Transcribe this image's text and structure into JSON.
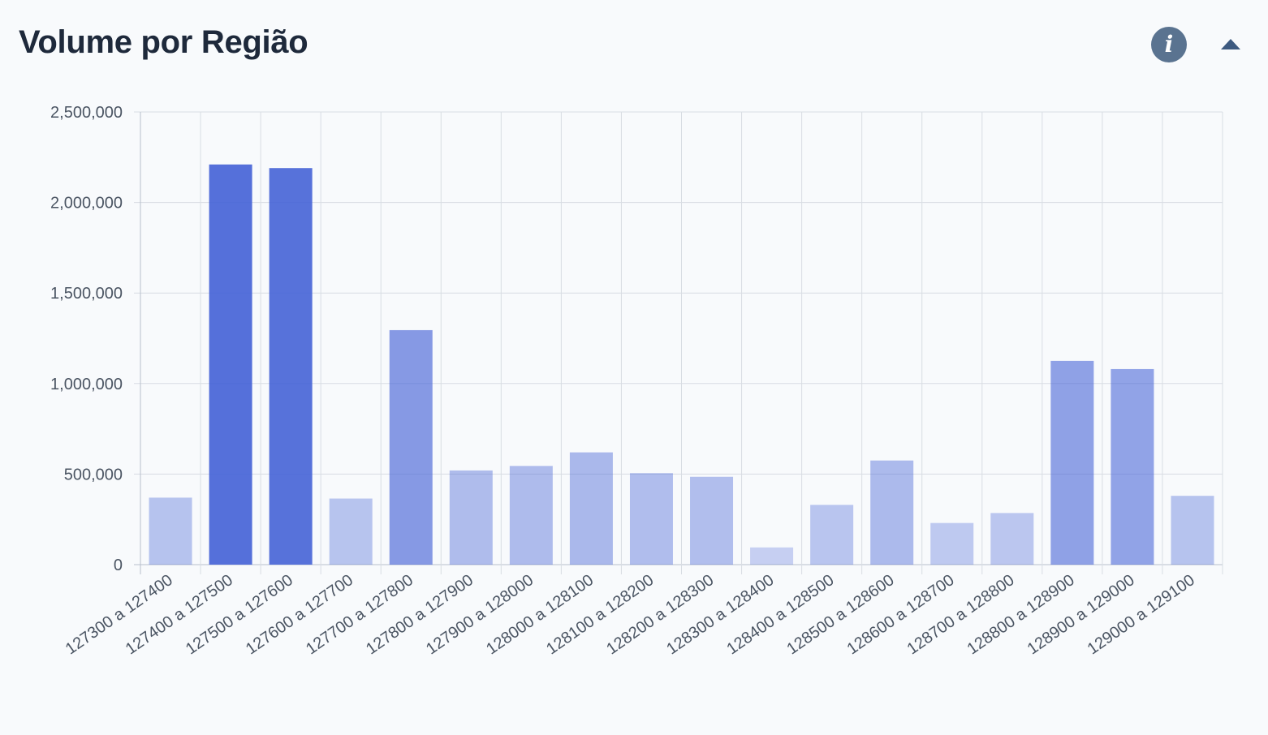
{
  "header": {
    "title": "Volume por Região",
    "info_label": "i",
    "info_icon": "info-icon",
    "collapse_icon": "caret-up-icon"
  },
  "colors": {
    "bar_base": "#4361d6",
    "grid": "#d8dde3",
    "axis": "#b8c0cc",
    "title": "#1e293b",
    "info_bg": "#5a7390",
    "caret": "#3d5a80"
  },
  "chart_data": {
    "type": "bar",
    "title": "Volume por Região",
    "xlabel": "",
    "ylabel": "",
    "ylim": [
      0,
      2500000
    ],
    "yticks": [
      0,
      500000,
      1000000,
      1500000,
      2000000,
      2500000
    ],
    "ytick_labels": [
      "0",
      "500,000",
      "1,000,000",
      "1,500,000",
      "2,000,000",
      "2,500,000"
    ],
    "grid": true,
    "legend": "none",
    "color_encoding": "opacity scales with value",
    "categories": [
      "127300 a 127400",
      "127400 a 127500",
      "127500 a 127600",
      "127600 a 127700",
      "127700 a 127800",
      "127800 a 127900",
      "127900 a 128000",
      "128000 a 128100",
      "128100 a 128200",
      "128200 a 128300",
      "128300 a 128400",
      "128400 a 128500",
      "128500 a 128600",
      "128600 a 128700",
      "128700 a 128800",
      "128800 a 128900",
      "128900 a 129000",
      "129000 a 129100"
    ],
    "values": [
      370000,
      2210000,
      2190000,
      365000,
      1295000,
      520000,
      545000,
      620000,
      505000,
      485000,
      95000,
      330000,
      575000,
      230000,
      285000,
      1125000,
      1080000,
      380000
    ]
  }
}
